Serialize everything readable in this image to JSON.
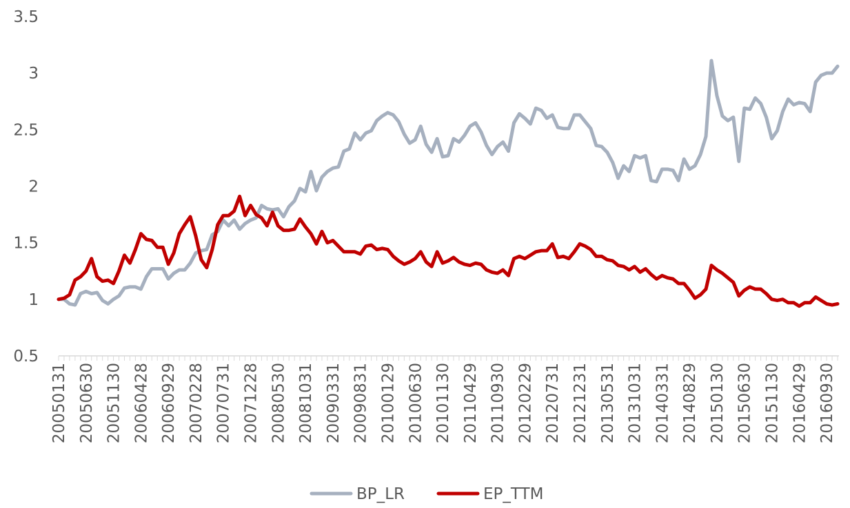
{
  "chart_data": {
    "type": "line",
    "title": "",
    "xlabel": "",
    "ylabel": "",
    "ylim": [
      0.5,
      3.5
    ],
    "yticks": [
      "0.5",
      "1",
      "1.5",
      "2",
      "2.5",
      "3",
      "3.5"
    ],
    "grid": false,
    "legend": "bottom",
    "xtick_labels": [
      "20050131",
      "20050630",
      "20051130",
      "20060428",
      "20060929",
      "20070228",
      "20070731",
      "20071228",
      "20080530",
      "20081031",
      "20090331",
      "20090831",
      "20100129",
      "20100630",
      "20101130",
      "20110429",
      "20110930",
      "20120229",
      "20120731",
      "20121231",
      "20130531",
      "20131031",
      "20140331",
      "20140829",
      "20150130",
      "20150630",
      "20151130",
      "20160429",
      "20160930"
    ],
    "series": [
      {
        "name": "BP_LR",
        "color": "#a6b0bf",
        "values": [
          1.0,
          1.0,
          0.96,
          0.95,
          1.05,
          1.07,
          1.05,
          1.06,
          0.99,
          0.96,
          1.0,
          1.03,
          1.1,
          1.11,
          1.11,
          1.09,
          1.2,
          1.27,
          1.27,
          1.27,
          1.18,
          1.23,
          1.26,
          1.26,
          1.32,
          1.41,
          1.43,
          1.44,
          1.57,
          1.6,
          1.7,
          1.65,
          1.7,
          1.62,
          1.67,
          1.7,
          1.72,
          1.83,
          1.8,
          1.79,
          1.8,
          1.73,
          1.82,
          1.87,
          1.98,
          1.95,
          2.13,
          1.96,
          2.08,
          2.13,
          2.16,
          2.17,
          2.31,
          2.33,
          2.47,
          2.41,
          2.47,
          2.49,
          2.58,
          2.62,
          2.65,
          2.63,
          2.57,
          2.46,
          2.38,
          2.41,
          2.53,
          2.37,
          2.3,
          2.42,
          2.26,
          2.27,
          2.42,
          2.39,
          2.45,
          2.53,
          2.56,
          2.48,
          2.36,
          2.28,
          2.35,
          2.39,
          2.31,
          2.56,
          2.64,
          2.6,
          2.55,
          2.69,
          2.67,
          2.6,
          2.63,
          2.52,
          2.51,
          2.51,
          2.63,
          2.63,
          2.57,
          2.51,
          2.36,
          2.35,
          2.3,
          2.21,
          2.07,
          2.18,
          2.13,
          2.27,
          2.25,
          2.27,
          2.05,
          2.04,
          2.15,
          2.15,
          2.14,
          2.05,
          2.24,
          2.15,
          2.18,
          2.28,
          2.44,
          3.11,
          2.8,
          2.62,
          2.58,
          2.61,
          2.22,
          2.69,
          2.68,
          2.78,
          2.73,
          2.61,
          2.42,
          2.49,
          2.66,
          2.77,
          2.72,
          2.74,
          2.73,
          2.66,
          2.92,
          2.98,
          3.0,
          3.0,
          3.06
        ]
      },
      {
        "name": "EP_TTM",
        "color": "#c00000",
        "values": [
          1.0,
          1.01,
          1.04,
          1.17,
          1.2,
          1.25,
          1.36,
          1.2,
          1.16,
          1.17,
          1.14,
          1.25,
          1.39,
          1.32,
          1.44,
          1.58,
          1.53,
          1.52,
          1.46,
          1.46,
          1.31,
          1.41,
          1.58,
          1.66,
          1.73,
          1.56,
          1.35,
          1.28,
          1.44,
          1.66,
          1.74,
          1.74,
          1.78,
          1.91,
          1.74,
          1.83,
          1.75,
          1.72,
          1.65,
          1.77,
          1.65,
          1.61,
          1.61,
          1.62,
          1.71,
          1.64,
          1.58,
          1.49,
          1.6,
          1.5,
          1.52,
          1.47,
          1.42,
          1.42,
          1.42,
          1.4,
          1.47,
          1.48,
          1.44,
          1.45,
          1.44,
          1.38,
          1.34,
          1.31,
          1.33,
          1.36,
          1.42,
          1.33,
          1.29,
          1.42,
          1.32,
          1.34,
          1.37,
          1.33,
          1.31,
          1.3,
          1.32,
          1.31,
          1.26,
          1.24,
          1.23,
          1.26,
          1.21,
          1.36,
          1.38,
          1.36,
          1.39,
          1.42,
          1.43,
          1.43,
          1.49,
          1.37,
          1.38,
          1.36,
          1.42,
          1.49,
          1.47,
          1.44,
          1.38,
          1.38,
          1.35,
          1.34,
          1.3,
          1.29,
          1.26,
          1.29,
          1.24,
          1.27,
          1.22,
          1.18,
          1.21,
          1.19,
          1.18,
          1.14,
          1.14,
          1.08,
          1.01,
          1.04,
          1.09,
          1.3,
          1.26,
          1.23,
          1.19,
          1.15,
          1.03,
          1.08,
          1.11,
          1.09,
          1.09,
          1.05,
          1.0,
          0.99,
          1.0,
          0.97,
          0.97,
          0.94,
          0.97,
          0.97,
          1.02,
          0.99,
          0.96,
          0.95,
          0.96
        ]
      }
    ]
  }
}
